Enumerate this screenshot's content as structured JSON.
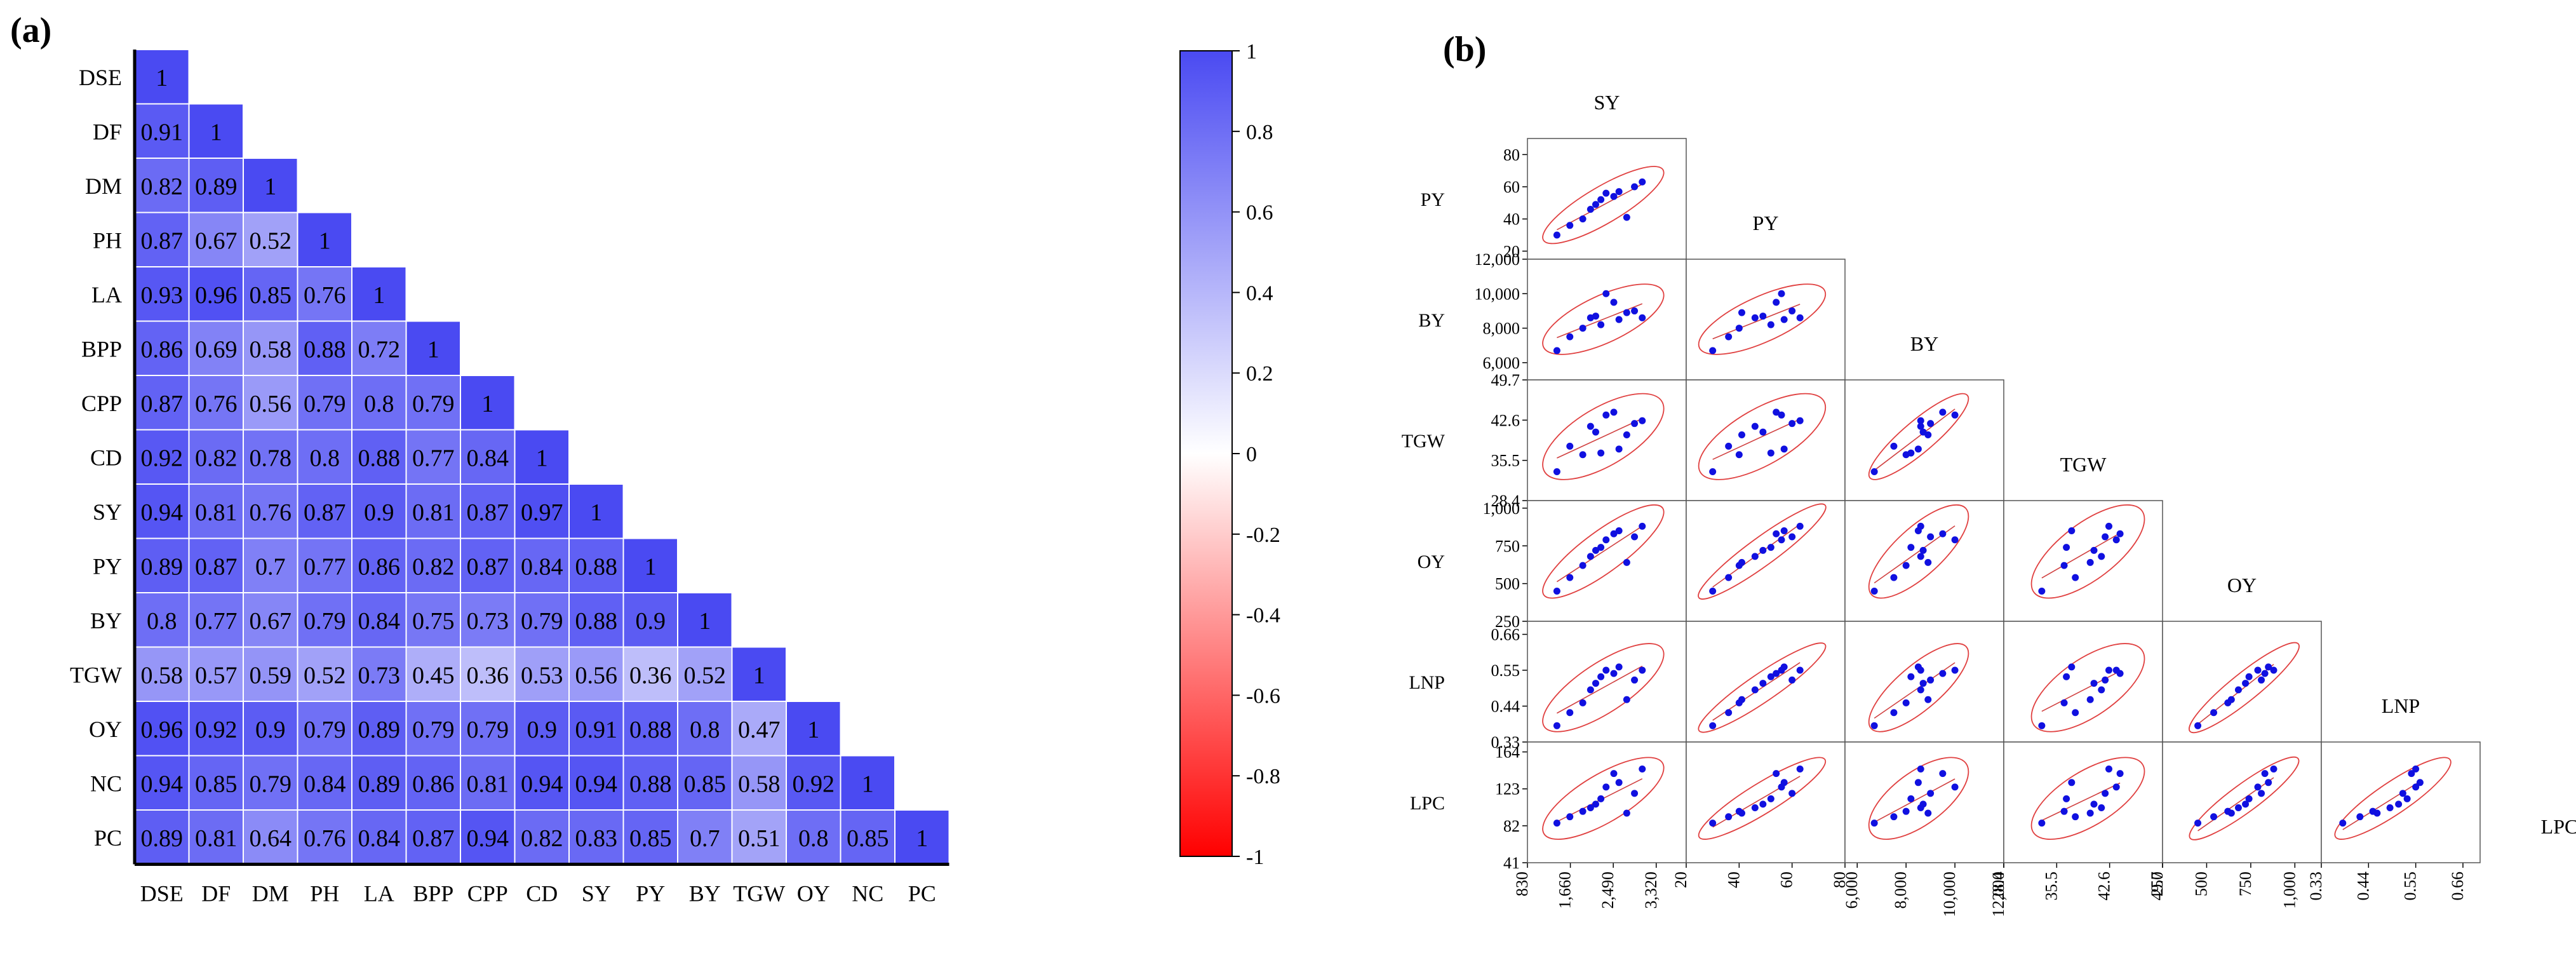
{
  "panels": {
    "a_label": "(a)",
    "b_label": "(b)"
  },
  "chart_data": [
    {
      "type": "heatmap",
      "title": "",
      "variables": [
        "DSE",
        "DF",
        "DM",
        "PH",
        "LA",
        "BPP",
        "CPP",
        "CD",
        "SY",
        "PY",
        "BY",
        "TGW",
        "OY",
        "NC",
        "PC"
      ],
      "lower_triangle": [
        [
          1
        ],
        [
          0.91,
          1
        ],
        [
          0.82,
          0.89,
          1
        ],
        [
          0.87,
          0.67,
          0.52,
          1
        ],
        [
          0.93,
          0.96,
          0.85,
          0.76,
          1
        ],
        [
          0.86,
          0.69,
          0.58,
          0.88,
          0.72,
          1
        ],
        [
          0.87,
          0.76,
          0.56,
          0.79,
          0.8,
          0.79,
          1
        ],
        [
          0.92,
          0.82,
          0.78,
          0.8,
          0.88,
          0.77,
          0.84,
          1
        ],
        [
          0.94,
          0.81,
          0.76,
          0.87,
          0.9,
          0.81,
          0.87,
          0.97,
          1
        ],
        [
          0.89,
          0.87,
          0.7,
          0.77,
          0.86,
          0.82,
          0.87,
          0.84,
          0.88,
          1
        ],
        [
          0.8,
          0.77,
          0.67,
          0.79,
          0.84,
          0.75,
          0.73,
          0.79,
          0.88,
          0.9,
          1
        ],
        [
          0.58,
          0.57,
          0.59,
          0.52,
          0.73,
          0.45,
          0.36,
          0.53,
          0.56,
          0.36,
          0.52,
          1
        ],
        [
          0.96,
          0.92,
          0.9,
          0.79,
          0.89,
          0.79,
          0.79,
          0.9,
          0.91,
          0.88,
          0.8,
          0.47,
          1
        ],
        [
          0.94,
          0.85,
          0.79,
          0.84,
          0.89,
          0.86,
          0.81,
          0.94,
          0.94,
          0.88,
          0.85,
          0.58,
          0.92,
          1
        ],
        [
          0.89,
          0.81,
          0.64,
          0.76,
          0.84,
          0.87,
          0.94,
          0.82,
          0.83,
          0.85,
          0.7,
          0.51,
          0.8,
          0.85,
          1
        ]
      ],
      "colorbar": {
        "range": [
          -1,
          1
        ],
        "ticks": [
          "1",
          "0.8",
          "0.6",
          "0.4",
          "0.2",
          "0",
          "-0.2",
          "-0.4",
          "-0.6",
          "-0.8",
          "-1"
        ],
        "tick_values": [
          1,
          0.8,
          0.6,
          0.4,
          0.2,
          0,
          -0.2,
          -0.4,
          -0.6,
          -0.8,
          -1
        ],
        "high_color": "#4a4af2",
        "mid_color": "#ffffff",
        "low_color": "#ff0000"
      }
    },
    {
      "type": "scatter",
      "title": "",
      "variables": [
        "SY",
        "PY",
        "BY",
        "TGW",
        "OY",
        "LNP",
        "LPC"
      ],
      "diagonal_labels": [
        "SY",
        "PY",
        "BY",
        "TGW",
        "OY",
        "LNP",
        "LPC"
      ],
      "row_labels": [
        "PY",
        "BY",
        "TGW",
        "OY",
        "LNP",
        "LPC"
      ],
      "column_labels": [
        "SY",
        "PY",
        "BY",
        "TGW",
        "OY",
        "LNP"
      ],
      "x_axes": [
        {
          "ticks": [
            "830",
            "1,660",
            "2,490",
            "3,320"
          ],
          "tick_values": [
            830,
            1660,
            2490,
            3320
          ],
          "range": [
            830,
            3900
          ]
        },
        {
          "ticks": [
            "20",
            "40",
            "60",
            "80"
          ],
          "tick_values": [
            20,
            40,
            60,
            80
          ],
          "range": [
            20,
            80
          ]
        },
        {
          "ticks": [
            "6,000",
            "8,000",
            "10,000",
            "12,000"
          ],
          "tick_values": [
            6000,
            8000,
            10000,
            12000
          ],
          "range": [
            5500,
            12000
          ]
        },
        {
          "ticks": [
            "28.4",
            "35.5",
            "42.6",
            "49.7"
          ],
          "tick_values": [
            28.4,
            35.5,
            42.6,
            49.7
          ],
          "range": [
            28.4,
            49.7
          ]
        },
        {
          "ticks": [
            "250",
            "500",
            "750",
            "1,000"
          ],
          "tick_values": [
            250,
            500,
            750,
            1000
          ],
          "range": [
            250,
            1150
          ]
        },
        {
          "ticks": [
            "0.33",
            "0.44",
            "0.55",
            "0.66"
          ],
          "tick_values": [
            0.33,
            0.44,
            0.55,
            0.66
          ],
          "range": [
            0.33,
            0.7
          ]
        }
      ],
      "y_axes": [
        {
          "ticks": [
            "80",
            "60",
            "40",
            "20"
          ],
          "tick_values": [
            80,
            60,
            40,
            20
          ],
          "range": [
            15,
            90
          ]
        },
        {
          "ticks": [
            "12,000",
            "10,000",
            "8,000",
            "6,000"
          ],
          "tick_values": [
            12000,
            10000,
            8000,
            6000
          ],
          "range": [
            5000,
            12000
          ]
        },
        {
          "ticks": [
            "49.7",
            "42.6",
            "35.5",
            "28.4"
          ],
          "tick_values": [
            49.7,
            42.6,
            35.5,
            28.4
          ],
          "range": [
            28.4,
            49.7
          ]
        },
        {
          "ticks": [
            "1,000",
            "750",
            "500",
            "250"
          ],
          "tick_values": [
            1000,
            750,
            500,
            250
          ],
          "range": [
            250,
            1050
          ]
        },
        {
          "ticks": [
            "0.66",
            "0.55",
            "0.44",
            "0.33"
          ],
          "tick_values": [
            0.66,
            0.55,
            0.44,
            0.33
          ],
          "range": [
            0.33,
            0.7
          ]
        },
        {
          "ticks": [
            "164",
            "123",
            "82",
            "41"
          ],
          "tick_values": [
            164,
            123,
            82,
            41
          ],
          "range": [
            41,
            175
          ]
        }
      ],
      "observations": {
        "SY": [
          1400,
          1650,
          1900,
          2050,
          2150,
          2250,
          2350,
          2500,
          2600,
          2750,
          2900,
          3050
        ],
        "PY": [
          30,
          36,
          40,
          46,
          49,
          52,
          56,
          54,
          57,
          41,
          60,
          63
        ],
        "BY": [
          6700,
          7500,
          8000,
          8600,
          8700,
          8200,
          10000,
          9500,
          8500,
          8900,
          9000,
          8600
        ],
        "TGW": [
          33.5,
          38.0,
          36.5,
          41.5,
          40.5,
          36.8,
          43.5,
          44.0,
          37.5,
          40.0,
          42.0,
          42.5
        ],
        "OY": [
          450,
          540,
          620,
          680,
          720,
          740,
          790,
          830,
          850,
          640,
          810,
          880
        ],
        "LNP": [
          0.38,
          0.42,
          0.45,
          0.49,
          0.51,
          0.53,
          0.55,
          0.54,
          0.56,
          0.46,
          0.52,
          0.55
        ],
        "LPC": [
          85,
          92,
          98,
          102,
          106,
          112,
          125,
          140,
          130,
          96,
          118,
          145
        ]
      }
    }
  ]
}
